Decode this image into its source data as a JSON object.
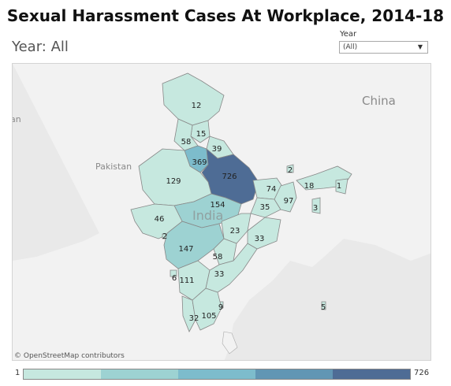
{
  "title": "Sexual Harassment Cases At Workplace, 2014-18",
  "subtitle": "Year: All",
  "filter": {
    "label": "Year",
    "value": "(All)",
    "caret": "▼"
  },
  "map": {
    "place_labels": {
      "china": "China",
      "pakistan": "Pakistan",
      "india": "India",
      "edge": "an"
    },
    "attribution": "© OpenStreetMap contributors",
    "state_values": [
      {
        "id": "jk",
        "value": 12
      },
      {
        "id": "hp",
        "value": 15
      },
      {
        "id": "pb",
        "value": 58
      },
      {
        "id": "uk",
        "value": 39
      },
      {
        "id": "hr",
        "value": 369
      },
      {
        "id": "up",
        "value": 726
      },
      {
        "id": "rj",
        "value": 129
      },
      {
        "id": "bh",
        "value": 74
      },
      {
        "id": "sk",
        "value": 2
      },
      {
        "id": "as",
        "value": 18
      },
      {
        "id": "mn",
        "value": 1
      },
      {
        "id": "mp",
        "value": 154
      },
      {
        "id": "jh",
        "value": 35
      },
      {
        "id": "wb",
        "value": 97
      },
      {
        "id": "mz",
        "value": 3
      },
      {
        "id": "gj",
        "value": 46
      },
      {
        "id": "dd",
        "value": 2
      },
      {
        "id": "cg",
        "value": 23
      },
      {
        "id": "od",
        "value": 33
      },
      {
        "id": "mh",
        "value": 147
      },
      {
        "id": "tg",
        "value": 58
      },
      {
        "id": "goa",
        "value": 6
      },
      {
        "id": "ka",
        "value": 111
      },
      {
        "id": "ap",
        "value": 33
      },
      {
        "id": "py",
        "value": 9
      },
      {
        "id": "an",
        "value": 5
      },
      {
        "id": "kl",
        "value": 32
      },
      {
        "id": "tn",
        "value": 105
      }
    ]
  },
  "legend": {
    "min": "1",
    "max": "726"
  },
  "colors": {
    "legend_steps": [
      "#c6e8df",
      "#9dd2d2",
      "#7dbccc",
      "#6196b4",
      "#4e6c95"
    ],
    "land": "#f2f2f2",
    "water": "#e9e9e9",
    "border": "#9a9a9a"
  }
}
